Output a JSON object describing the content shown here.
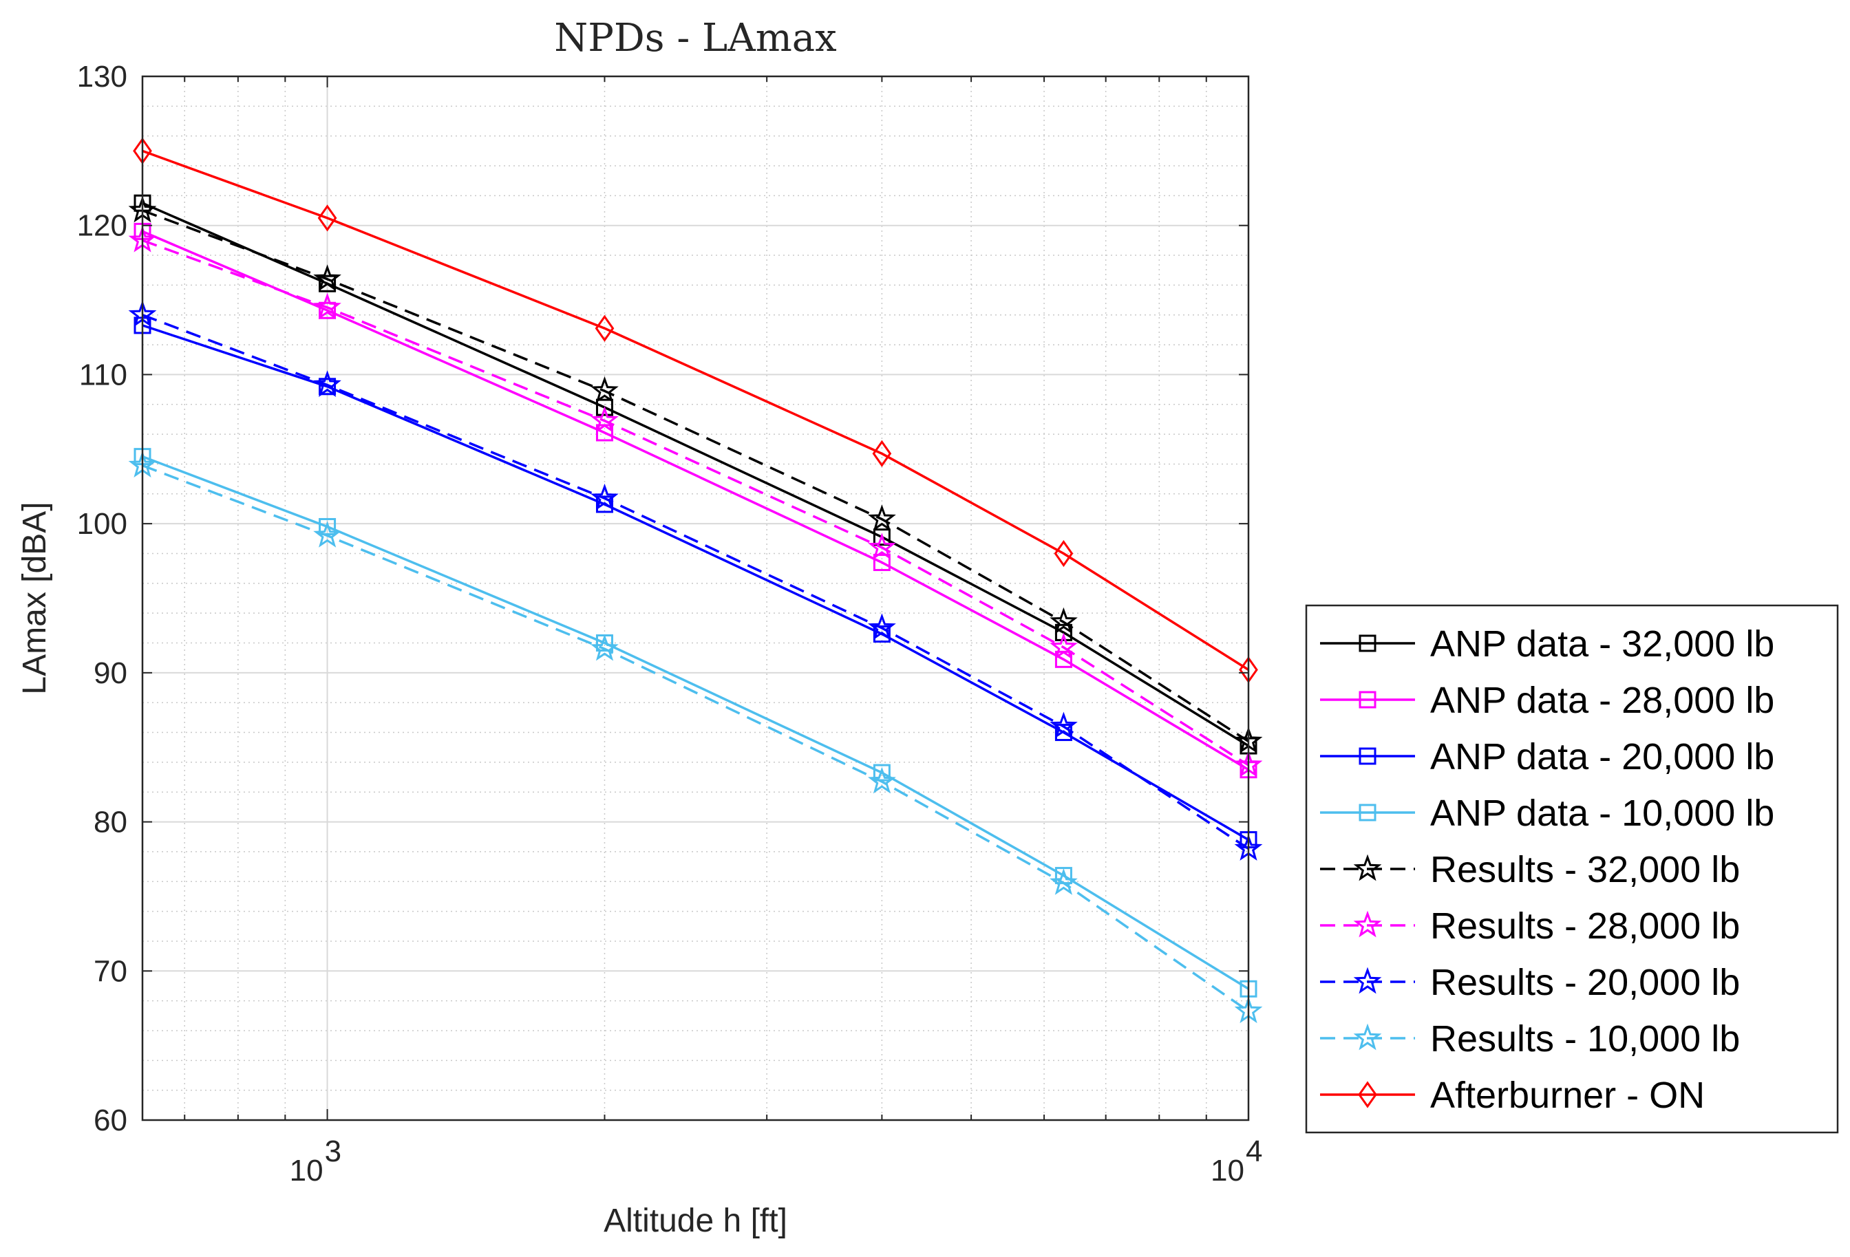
{
  "chart_data": {
    "type": "line",
    "title": "NPDs - LAmax",
    "xlabel": "Altitude h [ft]",
    "ylabel": "LAmax [dBA]",
    "xscale": "log",
    "xlim": [
      630,
      10000
    ],
    "ylim": [
      60,
      130
    ],
    "yticks": [
      60,
      70,
      80,
      90,
      100,
      110,
      120,
      130
    ],
    "xticks": [
      {
        "value": 1000,
        "base": "10",
        "exp": "3"
      },
      {
        "value": 10000,
        "base": "10",
        "exp": "4"
      }
    ],
    "grid": true,
    "minor_grid": true,
    "legend_position": "outside-right",
    "x": [
      630,
      1000,
      2000,
      4000,
      6300,
      10000
    ],
    "series": [
      {
        "name": "ANP data - 32,000 lb",
        "color": "#000000",
        "dash": "solid",
        "marker": "square",
        "values": [
          121.5,
          116.1,
          107.8,
          99.1,
          92.7,
          85.1
        ]
      },
      {
        "name": "ANP data - 28,000 lb",
        "color": "#ff00ff",
        "dash": "solid",
        "marker": "square",
        "values": [
          119.6,
          114.3,
          106.1,
          97.4,
          90.9,
          83.5
        ]
      },
      {
        "name": "ANP data - 20,000 lb",
        "color": "#0000ff",
        "dash": "solid",
        "marker": "square",
        "values": [
          113.3,
          109.2,
          101.3,
          92.6,
          86.0,
          78.8
        ]
      },
      {
        "name": "ANP data - 10,000 lb",
        "color": "#4dbeee",
        "dash": "solid",
        "marker": "square",
        "values": [
          104.5,
          99.8,
          92.0,
          83.3,
          76.4,
          68.8
        ]
      },
      {
        "name": "Results - 32,000 lb",
        "color": "#000000",
        "dash": "dashed",
        "marker": "star",
        "values": [
          121.0,
          116.4,
          108.9,
          100.3,
          93.4,
          85.4
        ]
      },
      {
        "name": "Results - 28,000 lb",
        "color": "#ff00ff",
        "dash": "dashed",
        "marker": "star",
        "values": [
          119.0,
          114.5,
          106.9,
          98.4,
          91.7,
          83.8
        ]
      },
      {
        "name": "Results - 20,000 lb",
        "color": "#0000ff",
        "dash": "dashed",
        "marker": "star",
        "values": [
          114.0,
          109.3,
          101.7,
          93.0,
          86.4,
          78.2
        ]
      },
      {
        "name": "Results - 10,000 lb",
        "color": "#4dbeee",
        "dash": "dashed",
        "marker": "star",
        "values": [
          103.9,
          99.2,
          91.6,
          82.7,
          75.9,
          67.3
        ]
      },
      {
        "name": "Afterburner - ON",
        "color": "#ff0000",
        "dash": "solid",
        "marker": "diamond",
        "values": [
          125.0,
          120.5,
          113.1,
          104.7,
          98.0,
          90.2
        ]
      }
    ]
  }
}
